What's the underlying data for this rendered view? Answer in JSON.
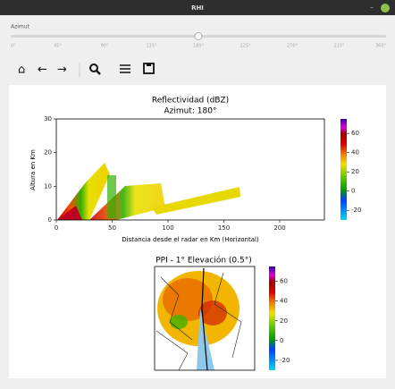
{
  "window": {
    "title": "RHI"
  },
  "slider": {
    "label": "Azimut",
    "ticks": [
      "0°",
      "45°",
      "90°",
      "135°",
      "180°",
      "225°",
      "270°",
      "315°",
      "360°"
    ],
    "min": 0,
    "max": 360,
    "value": 180
  },
  "figure": {
    "rhi": {
      "title": "Reflectividad (dBZ)",
      "subtitle": "Azimut: 180°",
      "x_label": "Distancia desde el radar en Km (Horizontal)",
      "y_label": "Altura en Km",
      "xlim": [
        0,
        240
      ],
      "xticks": [
        0,
        50,
        100,
        150,
        200
      ],
      "ylim": [
        0,
        30
      ],
      "yticks": [
        0,
        10,
        20,
        30
      ],
      "colorbar": {
        "lim": [
          -30,
          75
        ],
        "ticks": [
          60,
          40,
          20,
          0,
          -20
        ]
      }
    },
    "ppi": {
      "title": "PPI - 1° Elevación (0.5°)",
      "colorbar": {
        "lim": [
          -30,
          75
        ],
        "ticks": [
          60,
          40,
          20,
          0,
          -20
        ]
      }
    }
  }
}
